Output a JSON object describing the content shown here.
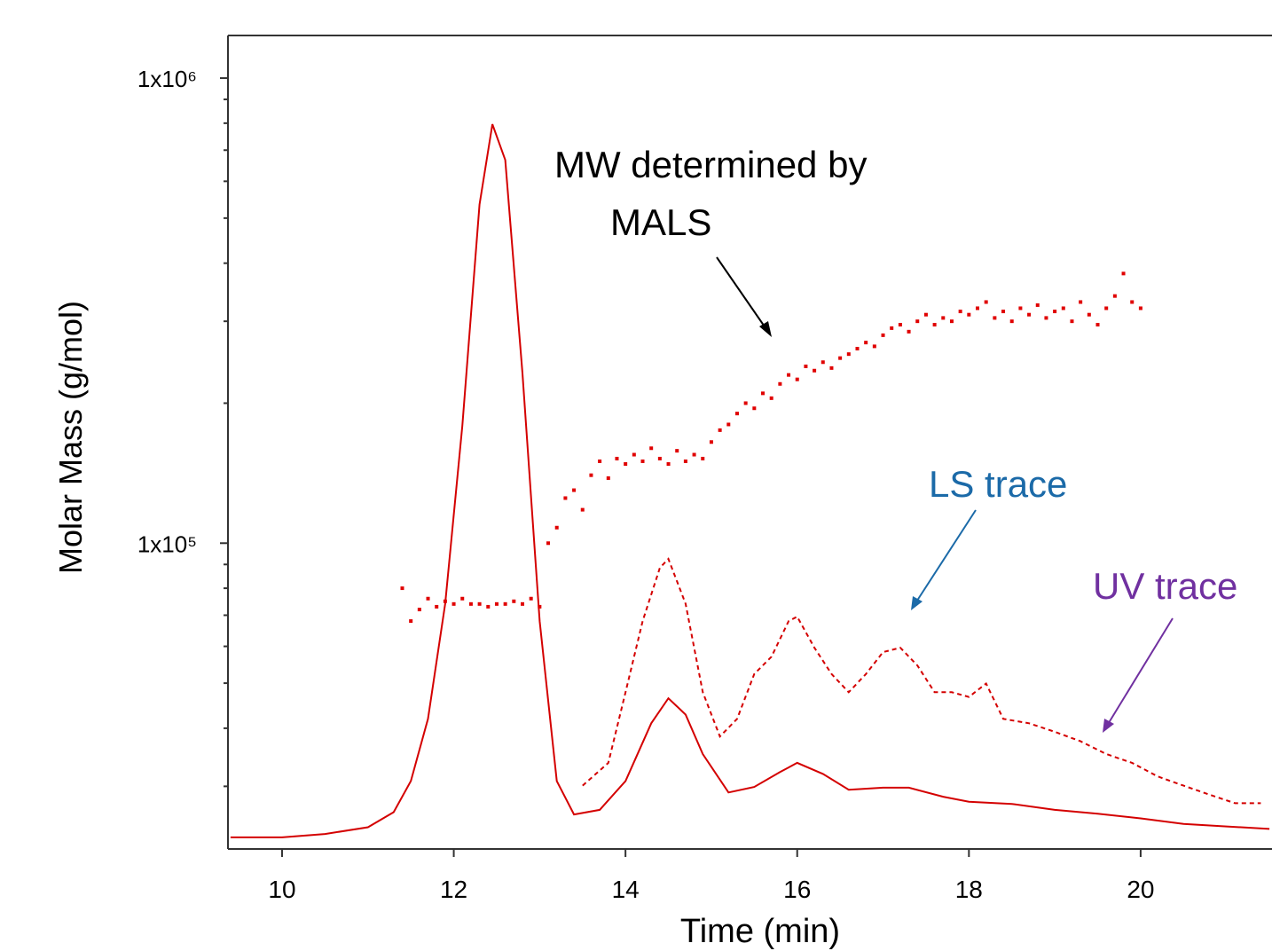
{
  "chart_data": {
    "type": "line",
    "x_label": "Time (min)",
    "y_label": "Molar Mass (g/mol)",
    "xlim": [
      9.37,
      21.53
    ],
    "xticks": [
      10,
      12,
      14,
      16,
      18,
      20
    ],
    "ylim": [
      22000,
      1235000
    ],
    "log_y": true,
    "yticks": [
      {
        "value": 100000,
        "label": "1x10⁵"
      },
      {
        "value": 1000000,
        "label": "1x10⁶"
      }
    ],
    "y_minor_ticks": [
      30000,
      40000,
      50000,
      60000,
      70000,
      80000,
      90000,
      200000,
      300000,
      400000,
      500000,
      600000,
      700000,
      800000,
      900000
    ],
    "series": [
      {
        "mark": "solid",
        "color": "#d40000",
        "x": [
          9.4,
          10,
          10.5,
          11,
          11.3,
          11.5,
          11.7,
          11.9,
          12.1,
          12.3,
          12.45,
          12.6,
          12.8,
          13.0,
          13.2,
          13.4,
          13.7,
          14.0,
          14.3,
          14.5,
          14.7,
          14.9,
          15.2,
          15.5,
          15.8,
          16.0,
          16.3,
          16.6,
          17.0,
          17.3,
          17.7,
          18.0,
          18.5,
          19,
          19.5,
          20,
          20.5,
          21,
          21.5
        ],
        "values": [
          23300,
          23300,
          23700,
          24500,
          26400,
          30800,
          41900,
          74100,
          178600,
          535000,
          796000,
          667000,
          232000,
          68000,
          30800,
          26100,
          26700,
          30800,
          41000,
          46400,
          42800,
          35200,
          29100,
          29900,
          32200,
          33700,
          31900,
          29500,
          29800,
          29800,
          28500,
          27800,
          27500,
          26700,
          26200,
          25600,
          24900,
          24600,
          24300
        ]
      },
      {
        "mark": "dashed",
        "color": "#d40000",
        "x": [
          13.5,
          13.8,
          14.0,
          14.2,
          14.4,
          14.5,
          14.7,
          14.9,
          15.1,
          15.3,
          15.5,
          15.7,
          15.9,
          16.0,
          16.2,
          16.4,
          16.6,
          16.8,
          17.0,
          17.2,
          17.4,
          17.6,
          17.8,
          18.0,
          18.2,
          18.4,
          18.7,
          19.0,
          19.3,
          19.6,
          19.9,
          20.2,
          20.5,
          20.8,
          21.1,
          21.4
        ],
        "values": [
          30100,
          33700,
          47800,
          68000,
          88500,
          92500,
          74100,
          47800,
          38400,
          41900,
          52300,
          57000,
          68000,
          69500,
          59600,
          52300,
          47800,
          52300,
          58300,
          59600,
          54600,
          47800,
          47800,
          46700,
          49900,
          41900,
          41000,
          39300,
          37500,
          35200,
          33700,
          31500,
          30100,
          28800,
          27600,
          27600
        ]
      },
      {
        "mark": "dots",
        "color": "#e00000",
        "x": [
          11.4,
          11.5,
          11.6,
          11.7,
          11.8,
          11.9,
          12.0,
          12.1,
          12.2,
          12.3,
          12.4,
          12.5,
          12.6,
          12.7,
          12.8,
          12.9,
          13.0,
          13.1,
          13.2,
          13.3,
          13.4,
          13.5,
          13.6,
          13.7,
          13.8,
          13.9,
          14.0,
          14.1,
          14.2,
          14.3,
          14.4,
          14.5,
          14.6,
          14.7,
          14.8,
          14.9,
          15.0,
          15.1,
          15.2,
          15.3,
          15.4,
          15.5,
          15.6,
          15.7,
          15.8,
          15.9,
          16.0,
          16.1,
          16.2,
          16.3,
          16.4,
          16.5,
          16.6,
          16.7,
          16.8,
          16.9,
          17.0,
          17.1,
          17.2,
          17.3,
          17.4,
          17.5,
          17.6,
          17.7,
          17.8,
          17.9,
          18.0,
          18.1,
          18.2,
          18.3,
          18.4,
          18.5,
          18.6,
          18.7,
          18.8,
          18.9,
          19.0,
          19.1,
          19.2,
          19.3,
          19.4,
          19.5,
          19.6,
          19.7,
          19.8,
          19.9,
          20.0
        ],
        "values": [
          80000,
          68000,
          72000,
          76000,
          73000,
          75000,
          74000,
          76000,
          74000,
          74000,
          73000,
          74000,
          74000,
          75000,
          74000,
          76000,
          73000,
          100000,
          108000,
          125000,
          130000,
          118000,
          140000,
          150000,
          138000,
          152000,
          148000,
          155000,
          150000,
          160000,
          152000,
          148000,
          158000,
          150000,
          155000,
          152000,
          165000,
          175000,
          180000,
          190000,
          200000,
          195000,
          210000,
          205000,
          220000,
          230000,
          225000,
          240000,
          235000,
          245000,
          238000,
          250000,
          255000,
          262000,
          270000,
          265000,
          280000,
          290000,
          295000,
          285000,
          300000,
          310000,
          295000,
          305000,
          300000,
          315000,
          310000,
          320000,
          330000,
          305000,
          315000,
          300000,
          320000,
          310000,
          325000,
          305000,
          315000,
          320000,
          300000,
          330000,
          310000,
          295000,
          320000,
          340000,
          380000,
          330000,
          320000
        ]
      }
    ],
    "annotations": [
      {
        "lines": [
          "MW determined by",
          "MALS"
        ],
        "color": "#000000"
      },
      {
        "lines": [
          "LS trace"
        ],
        "color": "#1b6aa8"
      },
      {
        "lines": [
          "UV trace"
        ],
        "color": "#7030a0"
      }
    ]
  }
}
